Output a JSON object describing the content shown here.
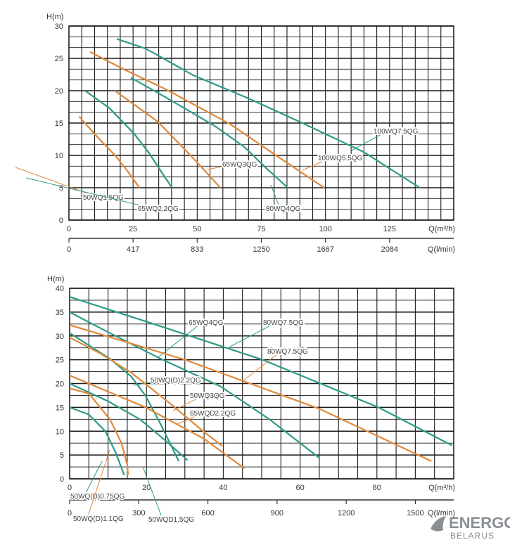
{
  "colors": {
    "teal": "#2f9a88",
    "orange": "#e0883a",
    "grid": "#1a1a1a"
  },
  "logo": {
    "line1": "ENERGO",
    "line2": "BELARUS"
  },
  "chart_data": [
    {
      "type": "line",
      "ylabel": "H(m)",
      "xlabel": "Q(m³/h)",
      "x2label": "Q(l/min)",
      "xlim": [
        0,
        150
      ],
      "ylim": [
        0,
        30
      ],
      "grid": true,
      "yticks": [
        0,
        5,
        10,
        15,
        20,
        25,
        30
      ],
      "xticks": [
        0,
        25,
        50,
        75,
        100,
        125
      ],
      "x2ticks": [
        "0",
        "417",
        "833",
        "1250",
        "1667",
        "2084"
      ],
      "series": [
        {
          "name": "50WQ1.5QG",
          "color": "orange",
          "points": [
            [
              4,
              16
            ],
            [
              10,
              13.3
            ],
            [
              18,
              10
            ],
            [
              23,
              7.5
            ],
            [
              27.5,
              5
            ]
          ]
        },
        {
          "name": "65WQ2.2QG",
          "color": "teal",
          "points": [
            [
              6.3,
              20
            ],
            [
              15.8,
              17.3
            ],
            [
              25.3,
              13.4
            ],
            [
              31,
              10.5
            ],
            [
              36.8,
              7
            ],
            [
              40.2,
              5
            ]
          ]
        },
        {
          "name": "65WQ3QG",
          "color": "orange",
          "points": [
            [
              17.9,
              20
            ],
            [
              26,
              17.7
            ],
            [
              34.7,
              15.2
            ],
            [
              43,
              11.8
            ],
            [
              50.5,
              8.7
            ],
            [
              59,
              5
            ]
          ]
        },
        {
          "name": "80WQ4QG",
          "color": "teal",
          "points": [
            [
              24.2,
              22
            ],
            [
              35,
              19.6
            ],
            [
              46.3,
              17
            ],
            [
              57,
              14.5
            ],
            [
              68.4,
              11.3
            ],
            [
              77,
              8
            ],
            [
              85.3,
              5
            ]
          ]
        },
        {
          "name": "100WQ5.5QG",
          "color": "orange",
          "points": [
            [
              8.2,
              26
            ],
            [
              22,
              23.2
            ],
            [
              37.9,
              20.2
            ],
            [
              50,
              17.6
            ],
            [
              63,
              14.8
            ],
            [
              80,
              10.2
            ],
            [
              99.5,
              5
            ]
          ]
        },
        {
          "name": "100WQ7.5QG",
          "color": "teal",
          "points": [
            [
              18.7,
              28
            ],
            [
              30,
              26.5
            ],
            [
              48.4,
              22.4
            ],
            [
              70,
              18.8
            ],
            [
              90.5,
              15.1
            ],
            [
              115,
              10.5
            ],
            [
              136.8,
              5
            ]
          ]
        }
      ]
    },
    {
      "type": "line",
      "ylabel": "H(m)",
      "xlabel": "Q(m³/h)",
      "x2label": "Q(l/min)",
      "xlim": [
        0,
        100
      ],
      "ylim": [
        0,
        40
      ],
      "grid": true,
      "yticks": [
        0,
        5,
        10,
        15,
        20,
        25,
        30,
        35,
        40
      ],
      "xticks": [
        0,
        20,
        40,
        60,
        80
      ],
      "x2ticks": [
        "0",
        "300",
        "600",
        "900",
        "1200",
        "1500"
      ],
      "series": [
        {
          "name": "65WQ4QG",
          "color": "teal",
          "points": [
            [
              0,
              35
            ],
            [
              10,
              30.8
            ],
            [
              23.7,
              25.2
            ],
            [
              39.3,
              19.4
            ],
            [
              52,
              12.5
            ],
            [
              65,
              4.4
            ]
          ]
        },
        {
          "name": "80WQ7.5QG",
          "color": "teal",
          "points": [
            [
              0,
              38.2
            ],
            [
              20,
              33
            ],
            [
              50.2,
              25
            ],
            [
              80.4,
              15
            ],
            [
              99.6,
              7
            ]
          ]
        },
        {
          "name": "80WQ7.5QG",
          "color": "orange",
          "points": [
            [
              0,
              32.3
            ],
            [
              30,
              25
            ],
            [
              65,
              14.7
            ],
            [
              94.2,
              3.7
            ]
          ]
        },
        {
          "name": "50WQ(D)2.2QG",
          "color": "teal",
          "points": [
            [
              0,
              30.6
            ],
            [
              10.5,
              25.2
            ],
            [
              16,
              21.5
            ],
            [
              19.8,
              17.4
            ],
            [
              24,
              11
            ],
            [
              28.4,
              3.7
            ]
          ]
        },
        {
          "name": "50WQ3QG",
          "color": "orange",
          "points": [
            [
              0,
              29.7
            ],
            [
              8,
              26.3
            ],
            [
              16,
              22.3
            ],
            [
              26.8,
              15.4
            ],
            [
              34,
              10.5
            ],
            [
              39.7,
              6.9
            ]
          ]
        },
        {
          "name": "65WQD2.2QG",
          "color": "orange",
          "points": [
            [
              0,
              21.7
            ],
            [
              19.8,
              15
            ],
            [
              35,
              8.4
            ],
            [
              45.5,
              2.2
            ]
          ]
        },
        {
          "name": "50WQD1.5QG",
          "color": "teal",
          "points": [
            [
              0,
              20
            ],
            [
              10,
              16.3
            ],
            [
              18.3,
              12.5
            ],
            [
              25,
              8
            ],
            [
              30.7,
              3.9
            ]
          ]
        },
        {
          "name": "50WQ(D)0.75QG",
          "color": "teal",
          "points": [
            [
              0,
              15
            ],
            [
              5,
              13.5
            ],
            [
              9.3,
              10
            ],
            [
              12,
              5.5
            ],
            [
              14.2,
              0.8
            ]
          ]
        },
        {
          "name": "50WQ(D)1.1QG",
          "color": "orange",
          "points": [
            [
              0,
              19
            ],
            [
              5,
              17.9
            ],
            [
              10.5,
              12.5
            ],
            [
              13.5,
              7.5
            ],
            [
              15,
              3
            ],
            [
              15.2,
              0.8
            ]
          ]
        }
      ]
    }
  ]
}
